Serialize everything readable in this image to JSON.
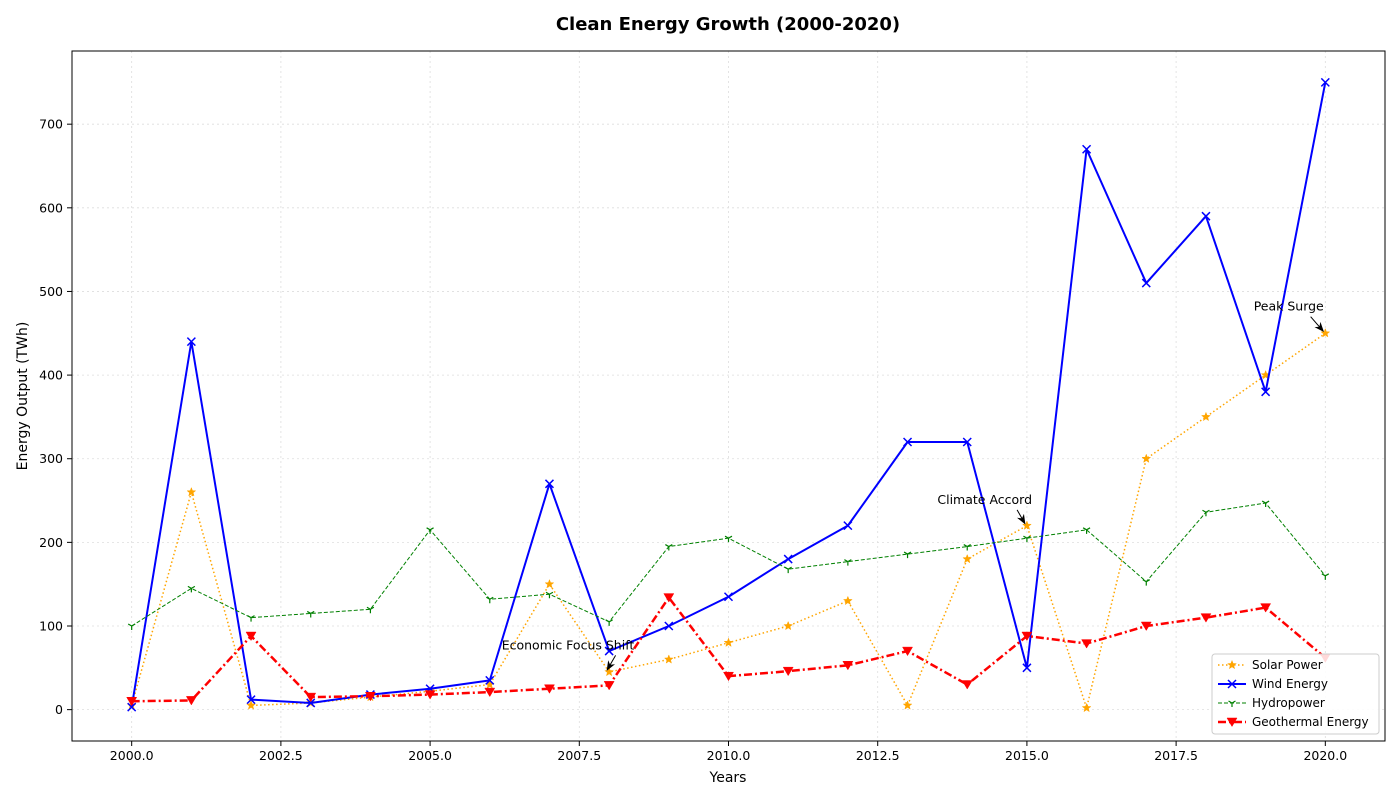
{
  "chart_data": {
    "type": "line",
    "title": "Clean Energy Growth (2000-2020)",
    "xlabel": "Years",
    "ylabel": "Energy Output (TWh)",
    "xlim": [
      1999.0,
      2021.0
    ],
    "ylim": [
      -37.5,
      787.5
    ],
    "xticks": [
      2000,
      2002.5,
      2005,
      2007.5,
      2010,
      2012.5,
      2015,
      2017.5,
      2020
    ],
    "xtick_labels": [
      "2000.0",
      "2002.5",
      "2005.0",
      "2007.5",
      "2010.0",
      "2012.5",
      "2015.0",
      "2017.5",
      "2020.0"
    ],
    "yticks": [
      0,
      100,
      200,
      300,
      400,
      500,
      600,
      700
    ],
    "ytick_labels": [
      "0",
      "100",
      "200",
      "300",
      "400",
      "500",
      "600",
      "700"
    ],
    "grid": true,
    "legend_position": "lower-right",
    "x": [
      2000,
      2001,
      2002,
      2003,
      2004,
      2005,
      2006,
      2007,
      2008,
      2009,
      2010,
      2011,
      2012,
      2013,
      2014,
      2015,
      2016,
      2017,
      2018,
      2019,
      2020
    ],
    "series": [
      {
        "name": "Solar Power",
        "color": "#ffa500",
        "line_style": "dotted",
        "marker": "star",
        "values": [
          5,
          260,
          5,
          8,
          15,
          22,
          30,
          150,
          45,
          60,
          80,
          100,
          130,
          5,
          180,
          220,
          2,
          300,
          350,
          400,
          450
        ]
      },
      {
        "name": "Wind Energy",
        "color": "#0000ff",
        "line_style": "solid",
        "marker": "x",
        "values": [
          3,
          440,
          12,
          8,
          18,
          25,
          35,
          270,
          70,
          100,
          135,
          180,
          220,
          320,
          320,
          50,
          670,
          510,
          590,
          380,
          750
        ]
      },
      {
        "name": "Hydropower",
        "color": "#008000",
        "line_style": "dashed",
        "marker": "tri_down",
        "values": [
          100,
          145,
          110,
          115,
          120,
          215,
          132,
          138,
          105,
          195,
          205,
          168,
          177,
          186,
          195,
          205,
          215,
          153,
          236,
          247,
          160
        ]
      },
      {
        "name": "Geothermal Energy",
        "color": "#ff0000",
        "line_style": "dashdot",
        "marker": "triangle_down",
        "values": [
          10,
          11,
          88,
          15,
          16,
          18,
          21,
          25,
          29,
          134,
          40,
          46,
          53,
          70,
          30,
          88,
          79,
          100,
          110,
          122,
          62
        ]
      }
    ],
    "annotations": [
      {
        "text": "Economic Focus Shift",
        "x": 2008,
        "y": 45,
        "text_x": 2006.2,
        "text_y": 72
      },
      {
        "text": "Climate Accord",
        "x": 2015,
        "y": 220,
        "text_x": 2013.5,
        "text_y": 246
      },
      {
        "text": "Peak Surge",
        "x": 2020,
        "y": 450,
        "text_x": 2018.8,
        "text_y": 477
      }
    ]
  }
}
